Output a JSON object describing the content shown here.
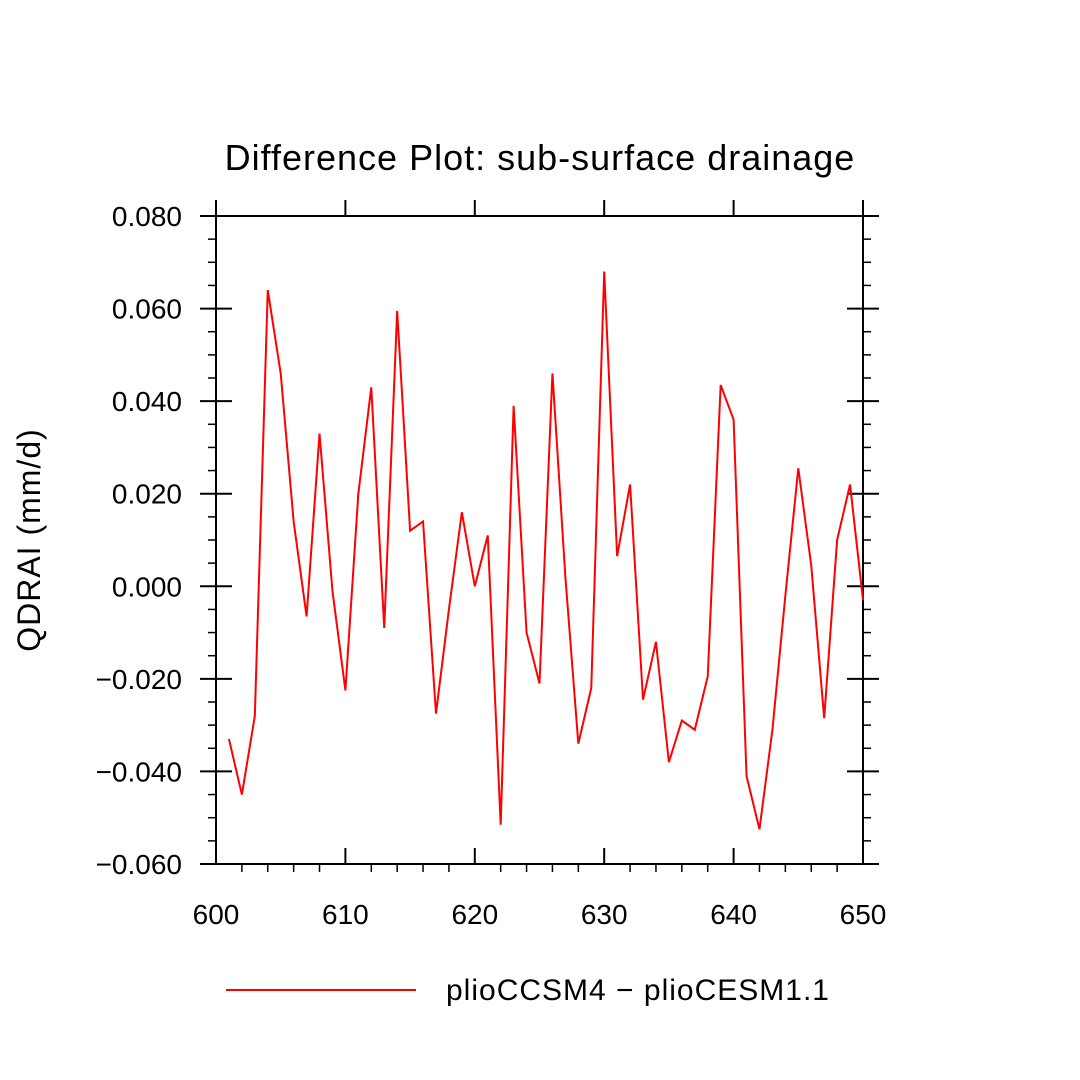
{
  "chart_data": {
    "type": "line",
    "title": "Difference Plot: sub-surface drainage",
    "xlabel": "",
    "ylabel": "QDRAI  (mm/d)",
    "xlim": [
      600,
      650
    ],
    "ylim": [
      -0.06,
      0.08
    ],
    "x_ticks": [
      600,
      610,
      620,
      630,
      640,
      650
    ],
    "x_tick_labels": [
      "600",
      "610",
      "620",
      "630",
      "640",
      "650"
    ],
    "y_ticks": [
      -0.06,
      -0.04,
      -0.02,
      0.0,
      0.02,
      0.04,
      0.06,
      0.08
    ],
    "y_tick_labels": [
      "−0.060",
      "−0.040",
      "−0.020",
      "0.000",
      "0.020",
      "0.040",
      "0.060",
      "0.080"
    ],
    "grid": false,
    "legend_position": "bottom-center",
    "series": [
      {
        "name": "plioCCSM4 − plioCESM1.1",
        "color": "#ff0000",
        "x": [
          601,
          602,
          603,
          604,
          605,
          606,
          607,
          608,
          609,
          610,
          611,
          612,
          613,
          614,
          615,
          616,
          617,
          618,
          619,
          620,
          621,
          622,
          623,
          624,
          625,
          626,
          627,
          628,
          629,
          630,
          631,
          632,
          633,
          634,
          635,
          636,
          637,
          638,
          639,
          640,
          641,
          642,
          643,
          644,
          645,
          646,
          647,
          648,
          649,
          650
        ],
        "values": [
          -0.033,
          -0.045,
          -0.028,
          0.064,
          0.046,
          0.014,
          -0.0065,
          0.033,
          -0.001,
          -0.0225,
          0.02,
          0.043,
          -0.009,
          0.0595,
          0.012,
          0.014,
          -0.0275,
          -0.005,
          0.016,
          0.0,
          0.011,
          -0.0515,
          0.039,
          -0.01,
          -0.021,
          0.046,
          0.002,
          -0.034,
          -0.022,
          0.068,
          0.0065,
          0.022,
          -0.0245,
          -0.012,
          -0.038,
          -0.029,
          -0.031,
          -0.0195,
          0.0435,
          0.036,
          -0.041,
          -0.0525,
          -0.031,
          -0.002,
          0.0255,
          0.0045,
          -0.0285,
          0.01,
          0.022,
          -0.003
        ]
      }
    ]
  }
}
